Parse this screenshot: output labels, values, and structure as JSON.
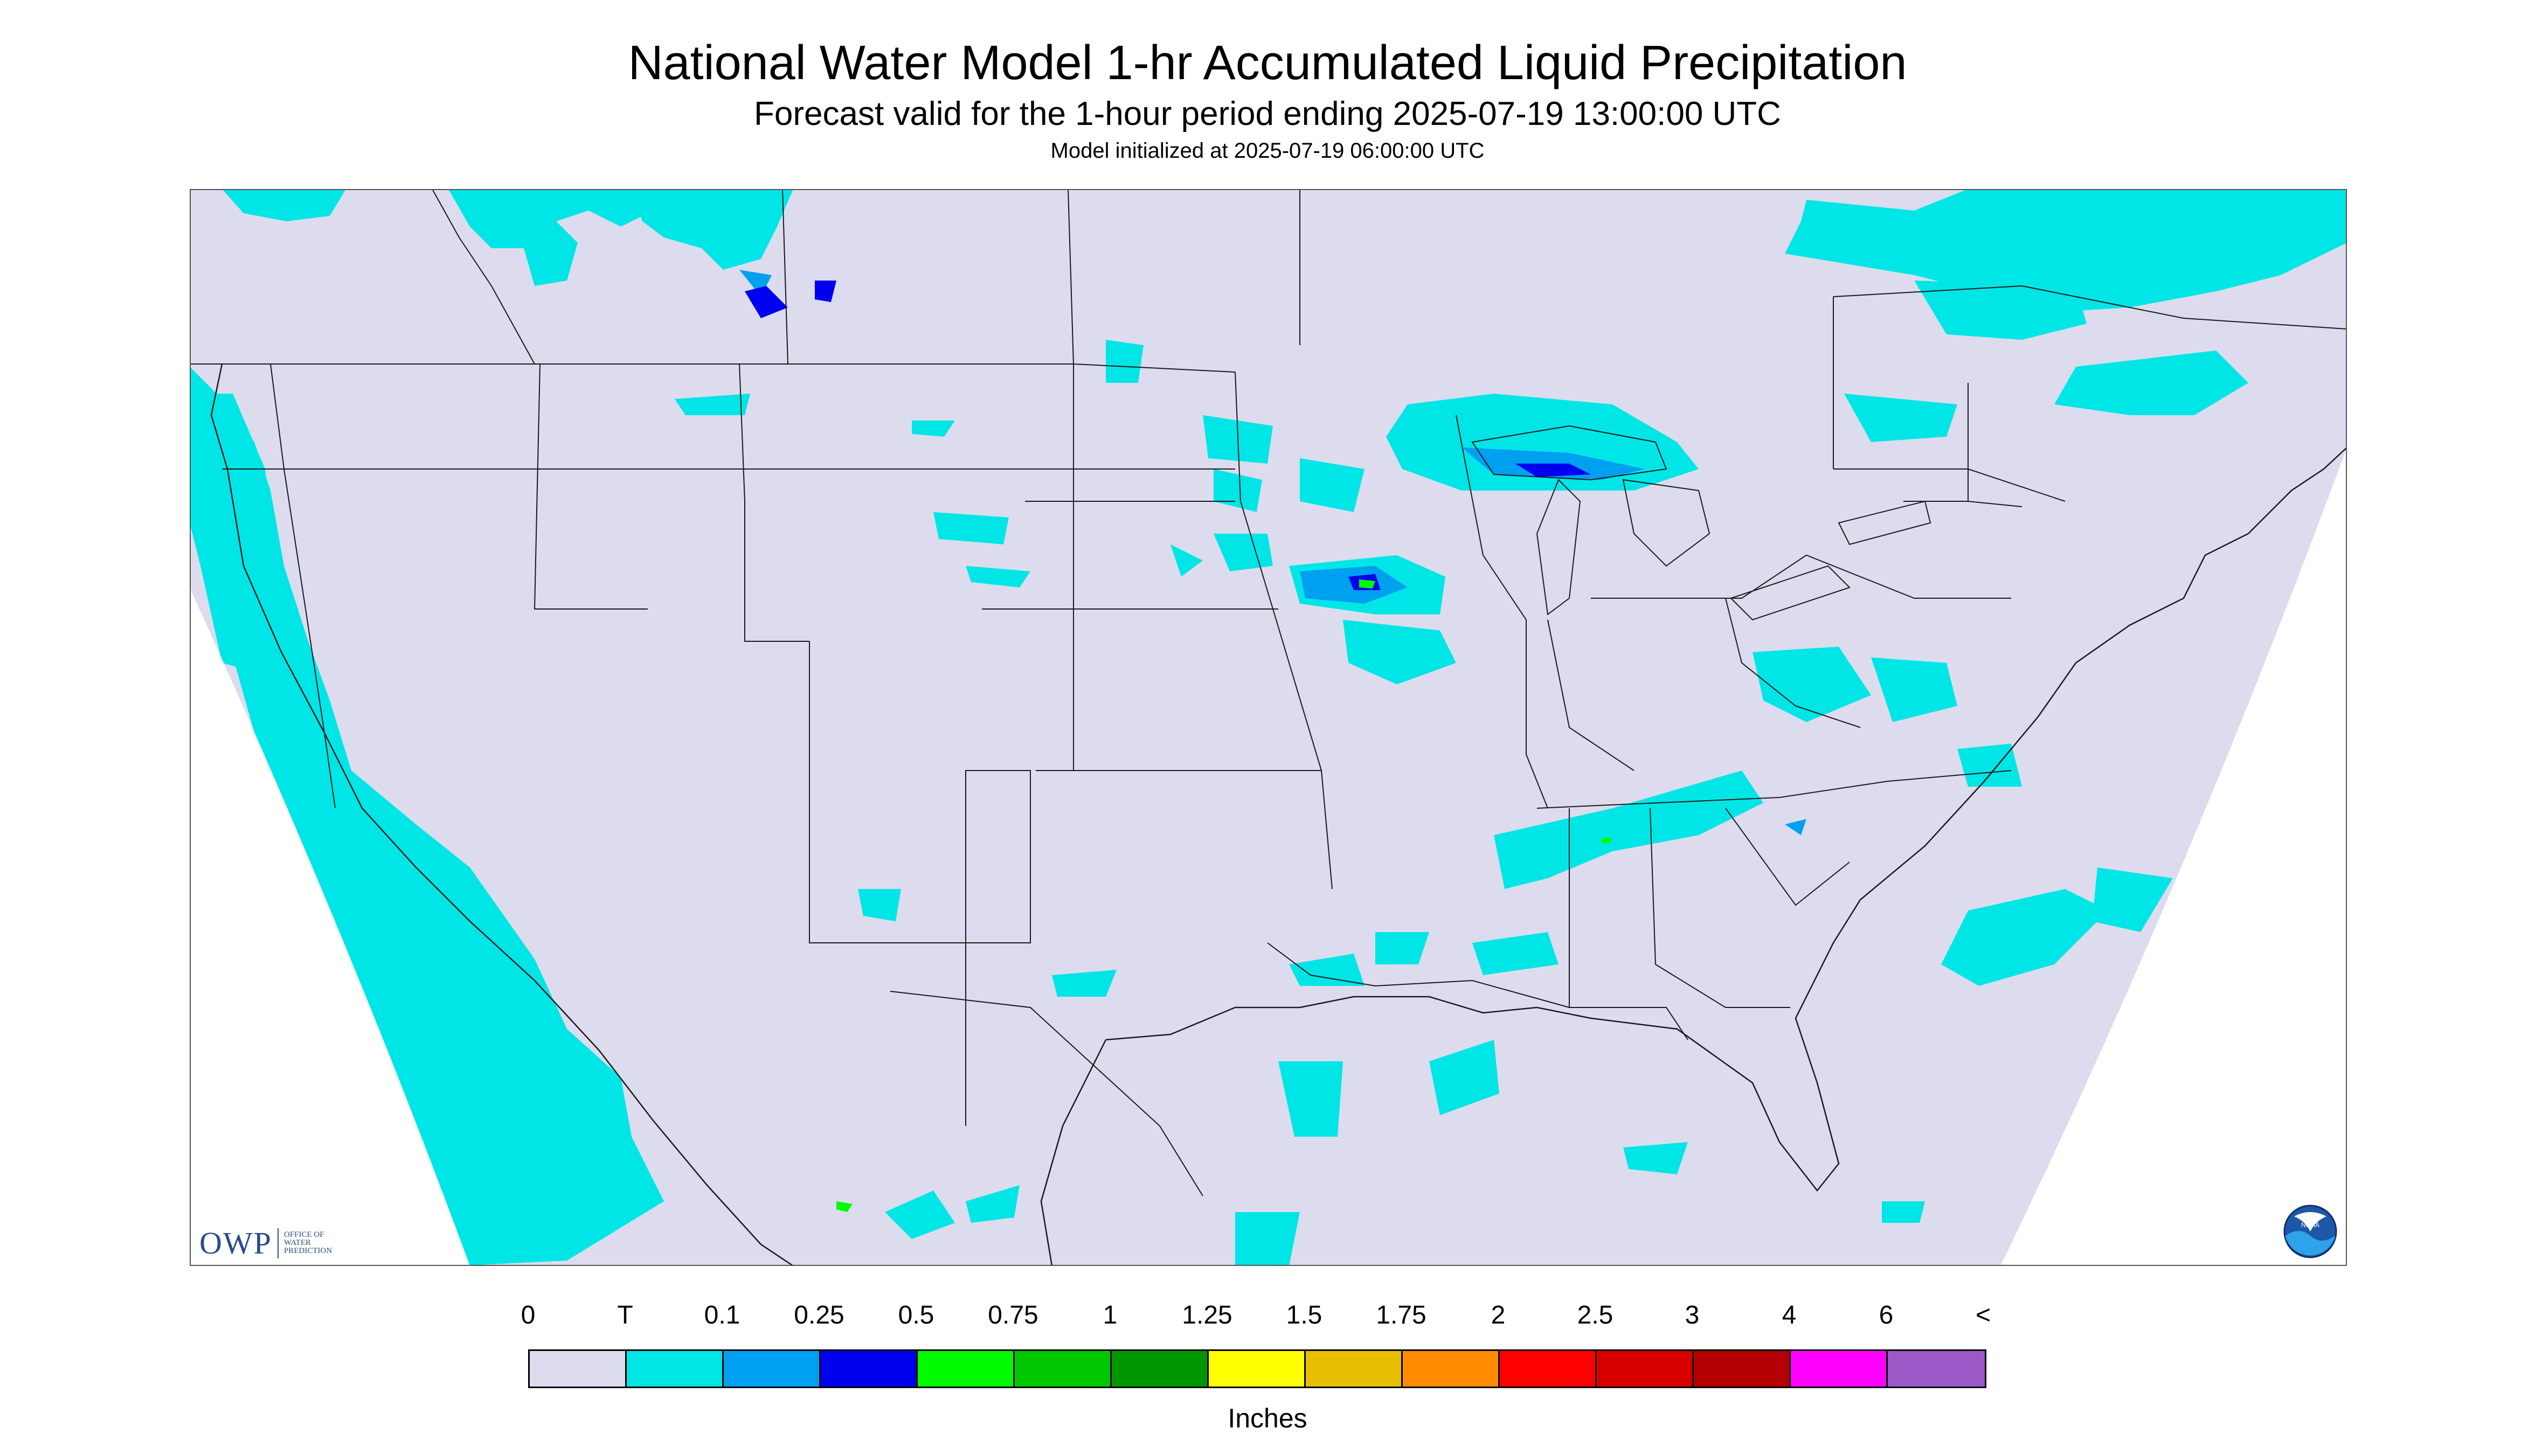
{
  "title": "National Water Model 1-hr Accumulated Liquid Precipitation",
  "subtitle": "Forecast valid for the 1-hour period ending 2025-07-19 13:00:00 UTC",
  "init_line": "Model initialized at 2025-07-19 06:00:00 UTC",
  "logos": {
    "owp_mark": "OWP",
    "owp_text": [
      "OFFICE OF",
      "WATER",
      "PREDICTION"
    ],
    "noaa_text": "NOAA"
  },
  "legend": {
    "labels": [
      "0",
      "T",
      "0.1",
      "0.25",
      "0.5",
      "0.75",
      "1",
      "1.25",
      "1.5",
      "1.75",
      "2",
      "2.5",
      "3",
      "4",
      "6",
      "<"
    ],
    "colors": [
      "#dcdcee",
      "#00e6e6",
      "#00a0f0",
      "#0000f0",
      "#00fa00",
      "#00c800",
      "#009600",
      "#ffff00",
      "#e6c000",
      "#ff8c00",
      "#ff0000",
      "#d80000",
      "#b40000",
      "#ff00ff",
      "#9b59c8"
    ],
    "units": "Inches"
  },
  "map_colors": {
    "background": "#dcdcee",
    "outside": "#ffffff",
    "trace": "#00e6e6",
    "light": "#00a0f0",
    "moderate": "#0000f0",
    "heavy": "#00fa00",
    "boundary": "#1a1a1a"
  }
}
